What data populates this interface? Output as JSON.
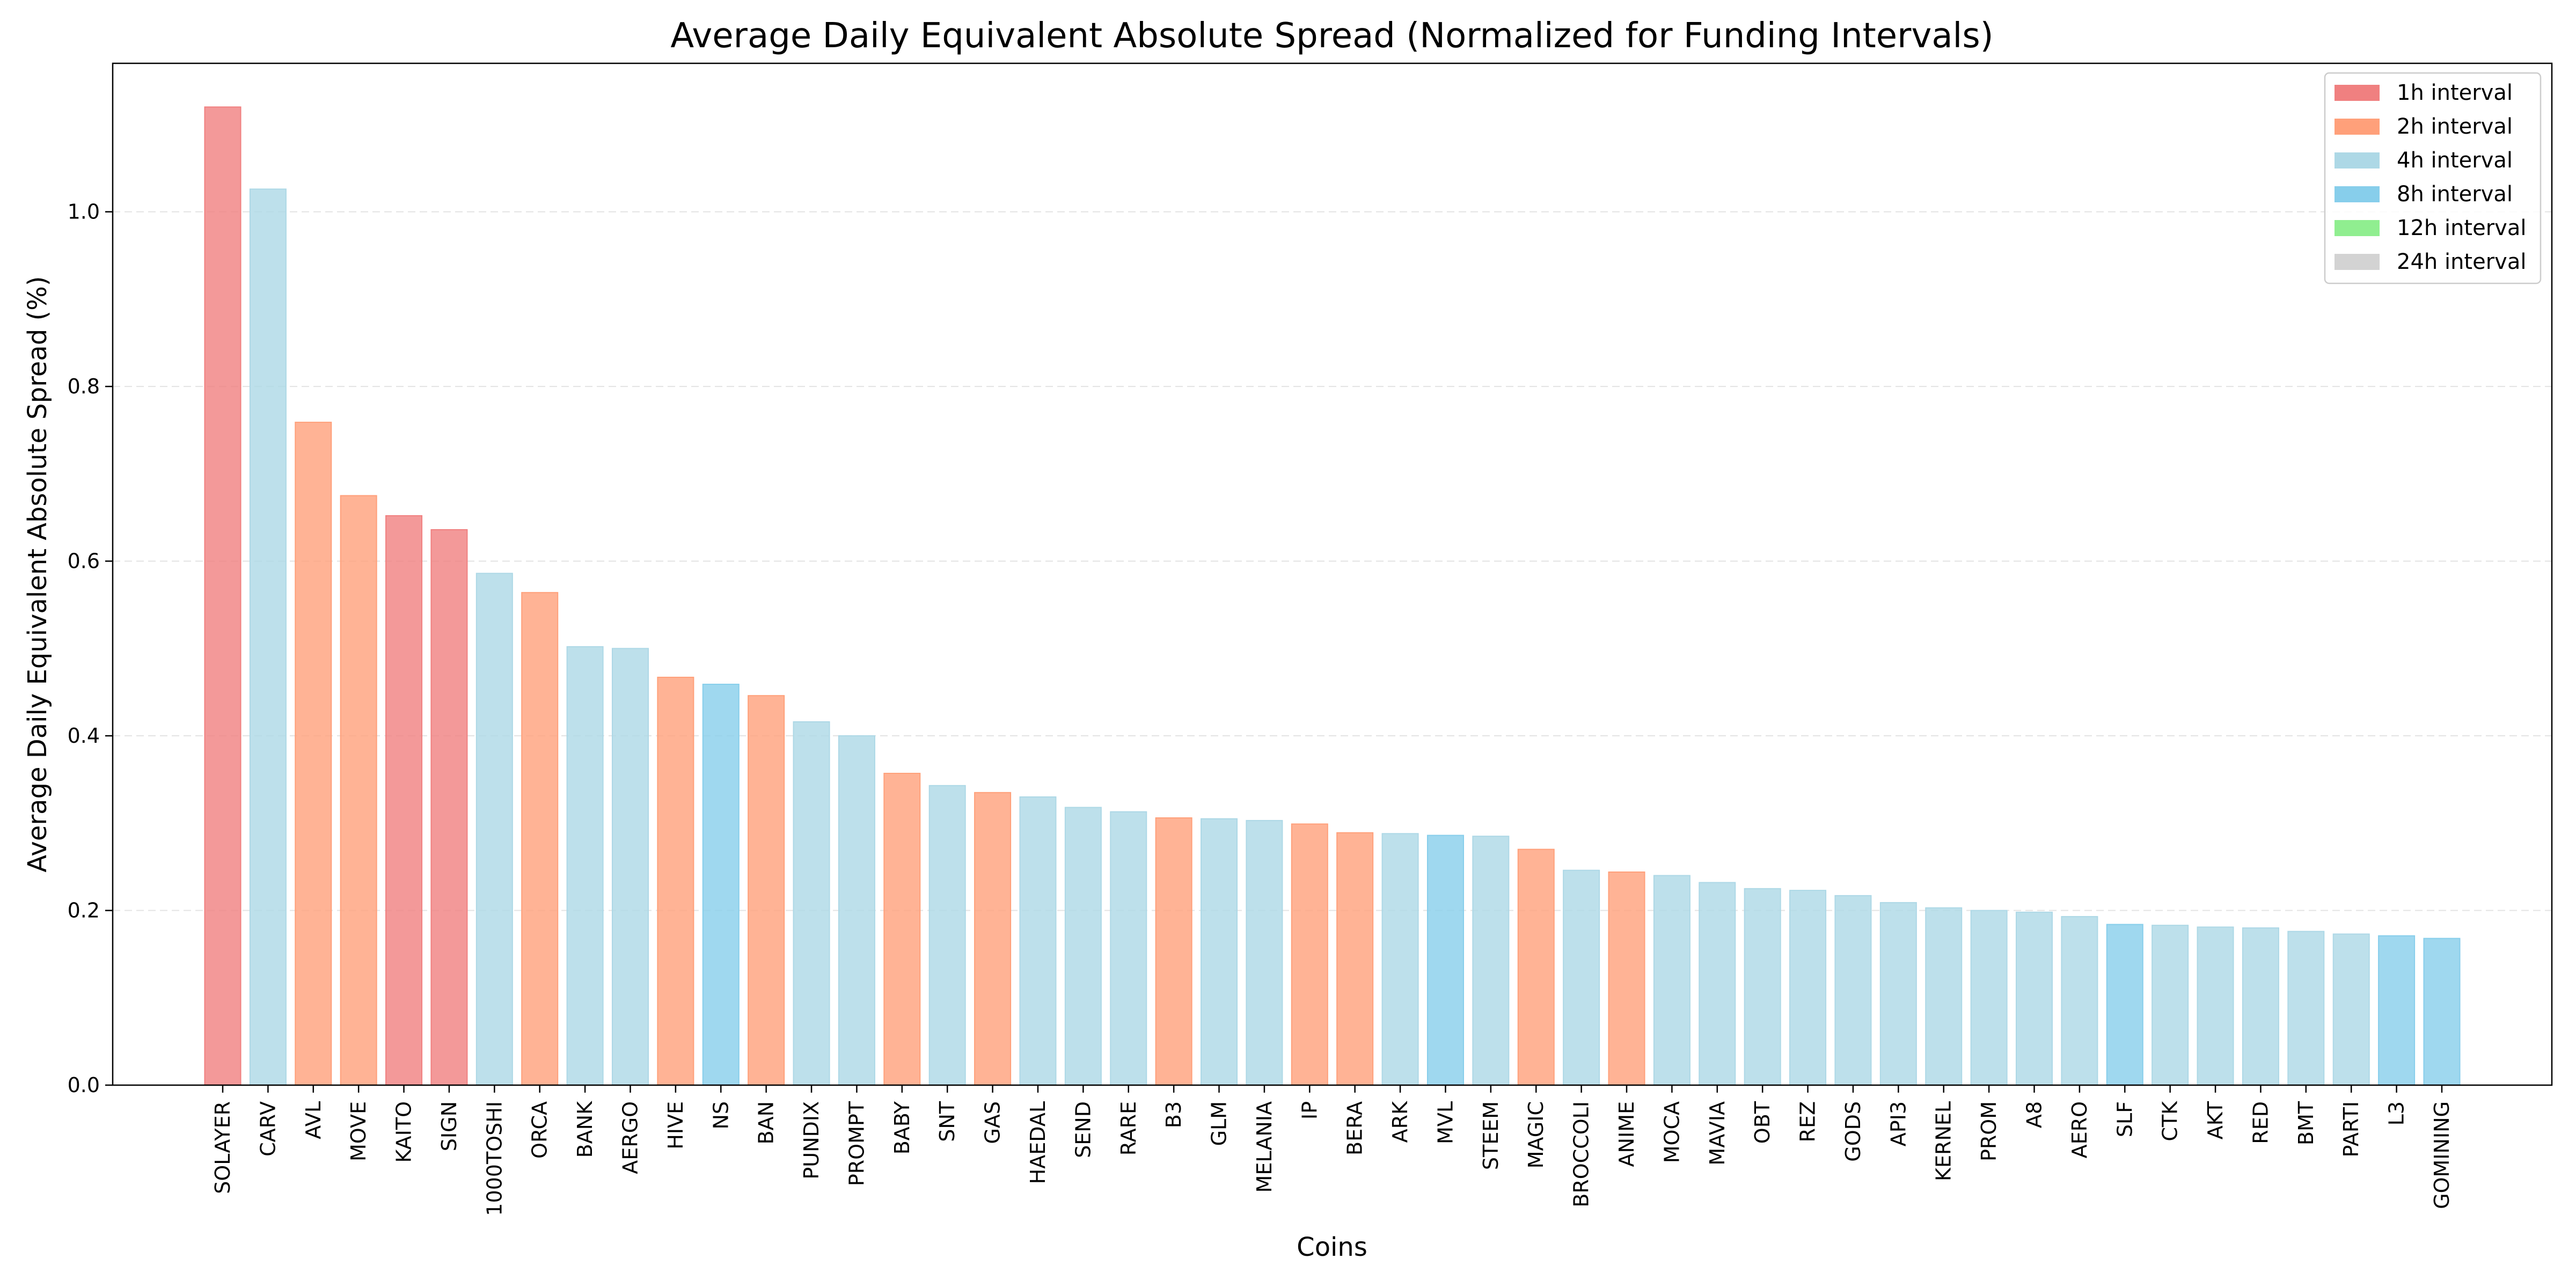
{
  "chart_data": {
    "type": "bar",
    "title": "Average Daily Equivalent Absolute Spread (Normalized for Funding Intervals)",
    "xlabel": "Coins",
    "ylabel": "Average Daily Equivalent Absolute Spread (%)",
    "ylim": [
      0,
      1.17
    ],
    "yticks": [
      0.0,
      0.2,
      0.4,
      0.6,
      0.8,
      1.0
    ],
    "grid": "horizontal dashed",
    "legend_position": "top-right",
    "legend": [
      {
        "label": "1h interval",
        "interval": "1h",
        "color": "#f08080"
      },
      {
        "label": "2h interval",
        "interval": "2h",
        "color": "#ffa07a"
      },
      {
        "label": "4h interval",
        "interval": "4h",
        "color": "#add8e6"
      },
      {
        "label": "8h interval",
        "interval": "8h",
        "color": "#87ceeb"
      },
      {
        "label": "12h interval",
        "interval": "12h",
        "color": "#90ee90"
      },
      {
        "label": "24h interval",
        "interval": "24h",
        "color": "#d3d3d3"
      }
    ],
    "categories": [
      "SOLAYER",
      "CARV",
      "AVL",
      "MOVE",
      "KAITO",
      "SIGN",
      "1000TOSHI",
      "ORCA",
      "BANK",
      "AERGO",
      "HIVE",
      "NS",
      "BAN",
      "PUNDIX",
      "PROMPT",
      "BABY",
      "SNT",
      "GAS",
      "HAEDAL",
      "SEND",
      "RARE",
      "B3",
      "GLM",
      "MELANIA",
      "IP",
      "BERA",
      "ARK",
      "MVL",
      "STEEM",
      "MAGIC",
      "BROCCOLI",
      "ANIME",
      "MOCA",
      "MAVIA",
      "OBT",
      "REZ",
      "GODS",
      "API3",
      "KERNEL",
      "PROM",
      "A8",
      "AERO",
      "SLF",
      "CTK",
      "AKT",
      "RED",
      "BMT",
      "PARTI",
      "L3",
      "GOMINING"
    ],
    "values": [
      1.12,
      1.026,
      0.759,
      0.675,
      0.652,
      0.636,
      0.586,
      0.564,
      0.502,
      0.5,
      0.467,
      0.459,
      0.446,
      0.416,
      0.4,
      0.357,
      0.343,
      0.335,
      0.33,
      0.318,
      0.313,
      0.306,
      0.305,
      0.303,
      0.299,
      0.289,
      0.288,
      0.286,
      0.285,
      0.27,
      0.246,
      0.244,
      0.24,
      0.232,
      0.225,
      0.223,
      0.217,
      0.209,
      0.203,
      0.2,
      0.198,
      0.193,
      0.184,
      0.183,
      0.181,
      0.18,
      0.176,
      0.173,
      0.171,
      0.168
    ],
    "intervals": [
      "1h",
      "4h",
      "2h",
      "2h",
      "1h",
      "1h",
      "4h",
      "2h",
      "4h",
      "4h",
      "2h",
      "8h",
      "2h",
      "4h",
      "4h",
      "2h",
      "4h",
      "2h",
      "4h",
      "4h",
      "4h",
      "2h",
      "4h",
      "4h",
      "2h",
      "2h",
      "4h",
      "8h",
      "4h",
      "2h",
      "4h",
      "2h",
      "4h",
      "4h",
      "4h",
      "4h",
      "4h",
      "4h",
      "4h",
      "4h",
      "4h",
      "4h",
      "8h",
      "4h",
      "4h",
      "4h",
      "4h",
      "4h",
      "8h",
      "8h"
    ]
  }
}
